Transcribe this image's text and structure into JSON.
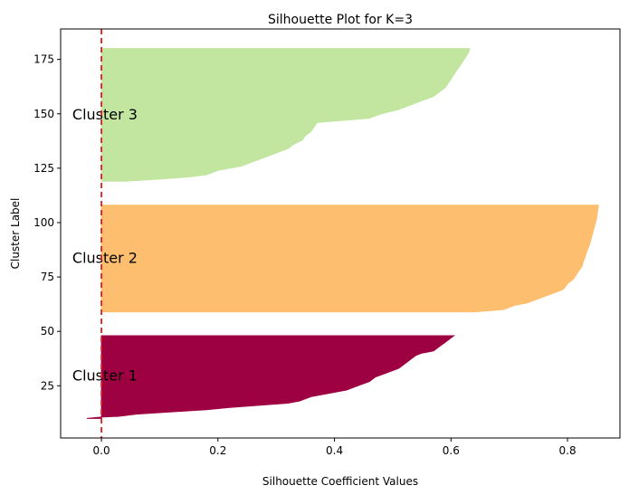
{
  "chart_data": {
    "type": "area",
    "title": "Silhouette Plot for K=3",
    "xlabel": "Silhouette Coefficient Values",
    "ylabel": "Cluster Label",
    "xlim": [
      -0.07,
      0.89
    ],
    "ylim": [
      1,
      189
    ],
    "xticks": [
      0.0,
      0.2,
      0.4,
      0.6,
      0.8
    ],
    "xtick_labels": [
      "0.0",
      "0.2",
      "0.4",
      "0.6",
      "0.8"
    ],
    "yticks": [
      25,
      50,
      75,
      100,
      125,
      150,
      175
    ],
    "ytick_labels": [
      "25",
      "50",
      "75",
      "100",
      "125",
      "150",
      "175"
    ],
    "grid": false,
    "reference_line": {
      "x": 0.0,
      "color": "#e41a1c",
      "style": "dashed"
    },
    "clusters": [
      {
        "label": "Cluster 1",
        "color": "#9e0142",
        "label_y": 30,
        "profile": [
          [
            10,
            -0.025
          ],
          [
            10.6,
            0.0
          ],
          [
            11,
            0.03
          ],
          [
            12,
            0.06
          ],
          [
            13,
            0.12
          ],
          [
            14,
            0.18
          ],
          [
            15,
            0.22
          ],
          [
            16,
            0.27
          ],
          [
            17,
            0.32
          ],
          [
            18,
            0.34
          ],
          [
            19,
            0.35
          ],
          [
            20,
            0.36
          ],
          [
            21,
            0.38
          ],
          [
            22,
            0.4
          ],
          [
            23,
            0.42
          ],
          [
            25,
            0.44
          ],
          [
            27,
            0.46
          ],
          [
            29,
            0.47
          ],
          [
            31,
            0.49
          ],
          [
            33,
            0.51
          ],
          [
            35,
            0.52
          ],
          [
            37,
            0.53
          ],
          [
            39,
            0.54
          ],
          [
            40,
            0.55
          ],
          [
            41,
            0.57
          ],
          [
            43,
            0.58
          ],
          [
            44,
            0.585
          ],
          [
            45,
            0.59
          ],
          [
            46,
            0.595
          ],
          [
            47,
            0.6
          ],
          [
            48,
            0.605
          ]
        ]
      },
      {
        "label": "Cluster 2",
        "color": "#fdbe6f",
        "label_y": 84,
        "profile": [
          [
            59,
            0.64
          ],
          [
            60,
            0.69
          ],
          [
            61,
            0.7
          ],
          [
            62,
            0.71
          ],
          [
            63,
            0.73
          ],
          [
            64,
            0.74
          ],
          [
            65,
            0.75
          ],
          [
            66,
            0.76
          ],
          [
            67,
            0.77
          ],
          [
            68,
            0.78
          ],
          [
            69,
            0.79
          ],
          [
            70,
            0.795
          ],
          [
            72,
            0.8
          ],
          [
            74,
            0.81
          ],
          [
            76,
            0.815
          ],
          [
            78,
            0.82
          ],
          [
            80,
            0.825
          ],
          [
            82,
            0.827
          ],
          [
            84,
            0.83
          ],
          [
            86,
            0.832
          ],
          [
            88,
            0.835
          ],
          [
            90,
            0.838
          ],
          [
            92,
            0.84
          ],
          [
            94,
            0.842
          ],
          [
            96,
            0.844
          ],
          [
            98,
            0.846
          ],
          [
            100,
            0.848
          ],
          [
            102,
            0.85
          ],
          [
            104,
            0.851
          ],
          [
            106,
            0.852
          ],
          [
            108,
            0.853
          ]
        ]
      },
      {
        "label": "Cluster 3",
        "color": "#c2e5a0",
        "label_y": 150,
        "profile": [
          [
            119,
            0.04
          ],
          [
            120,
            0.1
          ],
          [
            121,
            0.15
          ],
          [
            122,
            0.18
          ],
          [
            124,
            0.2
          ],
          [
            126,
            0.24
          ],
          [
            128,
            0.26
          ],
          [
            130,
            0.28
          ],
          [
            132,
            0.3
          ],
          [
            134,
            0.32
          ],
          [
            136,
            0.33
          ],
          [
            138,
            0.345
          ],
          [
            140,
            0.35
          ],
          [
            142,
            0.36
          ],
          [
            144,
            0.365
          ],
          [
            146,
            0.37
          ],
          [
            148,
            0.46
          ],
          [
            150,
            0.48
          ],
          [
            152,
            0.51
          ],
          [
            154,
            0.53
          ],
          [
            156,
            0.55
          ],
          [
            158,
            0.57
          ],
          [
            160,
            0.58
          ],
          [
            162,
            0.59
          ],
          [
            164,
            0.595
          ],
          [
            166,
            0.6
          ],
          [
            168,
            0.605
          ],
          [
            170,
            0.61
          ],
          [
            172,
            0.615
          ],
          [
            174,
            0.62
          ],
          [
            176,
            0.625
          ],
          [
            178,
            0.63
          ],
          [
            180,
            0.632
          ]
        ]
      }
    ]
  }
}
